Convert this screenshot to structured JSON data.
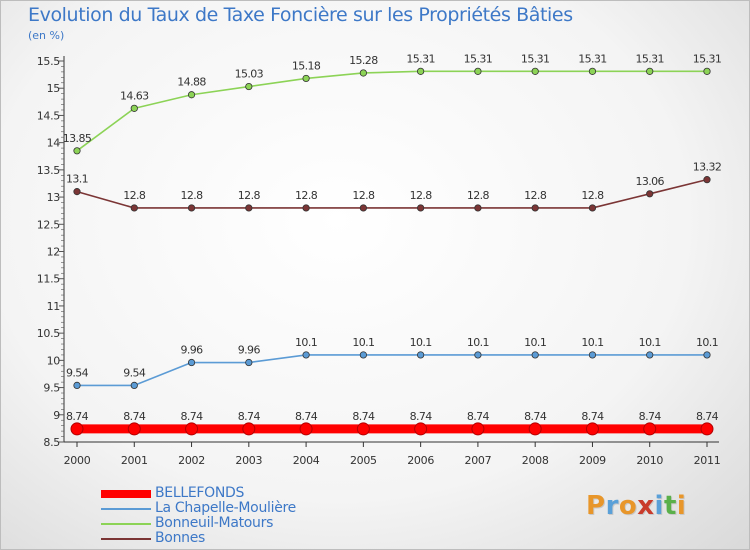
{
  "header": {
    "title": "Evolution du Taux de Taxe Foncière sur les Propriétés Bâties",
    "subtitle": "(en %)"
  },
  "logo": {
    "text": "Proxiti",
    "colors": [
      "#e8962a",
      "#5aa0d8",
      "#e8962a",
      "#c93b2b",
      "#5aa0d8",
      "#5ab04a",
      "#e8962a"
    ]
  },
  "chart_data": {
    "type": "line",
    "title": "Evolution du Taux de Taxe Foncière sur les Propriétés Bâties",
    "ylabel": "(en %)",
    "xlabel": "",
    "x": [
      "2000",
      "2001",
      "2002",
      "2003",
      "2004",
      "2005",
      "2006",
      "2007",
      "2008",
      "2009",
      "2010",
      "2011"
    ],
    "ylim": [
      8.5,
      15.5
    ],
    "yticks": [
      "8.5",
      "9",
      "9.5",
      "10",
      "10.5",
      "11",
      "11.5",
      "12",
      "12.5",
      "13",
      "13.5",
      "14",
      "14.5",
      "15",
      "15.5"
    ],
    "grid": false,
    "legend_position": "bottom-left",
    "series": [
      {
        "name": "BELLEFONDS",
        "color": "#ff0000",
        "values": [
          8.74,
          8.74,
          8.74,
          8.74,
          8.74,
          8.74,
          8.74,
          8.74,
          8.74,
          8.74,
          8.74,
          8.74
        ],
        "labels": [
          "8.74",
          "8.74",
          "8.74",
          "8.74",
          "8.74",
          "8.74",
          "8.74",
          "8.74",
          "8.74",
          "8.74",
          "8.74",
          "8.74"
        ]
      },
      {
        "name": "La Chapelle-Moulière",
        "color": "#5b9bd5",
        "values": [
          9.54,
          9.54,
          9.96,
          9.96,
          10.1,
          10.1,
          10.1,
          10.1,
          10.1,
          10.1,
          10.1,
          10.1
        ],
        "labels": [
          "9.54",
          "9.54",
          "9.96",
          "9.96",
          "10.1",
          "10.1",
          "10.1",
          "10.1",
          "10.1",
          "10.1",
          "10.1",
          "10.1"
        ]
      },
      {
        "name": "Bonneuil-Matours",
        "color": "#8cd356",
        "values": [
          13.85,
          14.63,
          14.88,
          15.03,
          15.18,
          15.28,
          15.31,
          15.31,
          15.31,
          15.31,
          15.31,
          15.31
        ],
        "labels": [
          "13.85",
          "14.63",
          "14.88",
          "15.03",
          "15.18",
          "15.28",
          "15.31",
          "15.31",
          "15.31",
          "15.31",
          "15.31",
          "15.31"
        ]
      },
      {
        "name": "Bonnes",
        "color": "#7b3535",
        "values": [
          13.1,
          12.8,
          12.8,
          12.8,
          12.8,
          12.8,
          12.8,
          12.8,
          12.8,
          12.8,
          13.06,
          13.32
        ],
        "labels": [
          "13.1",
          "12.8",
          "12.8",
          "12.8",
          "12.8",
          "12.8",
          "12.8",
          "12.8",
          "12.8",
          "12.8",
          "13.06",
          "13.32"
        ]
      }
    ]
  }
}
